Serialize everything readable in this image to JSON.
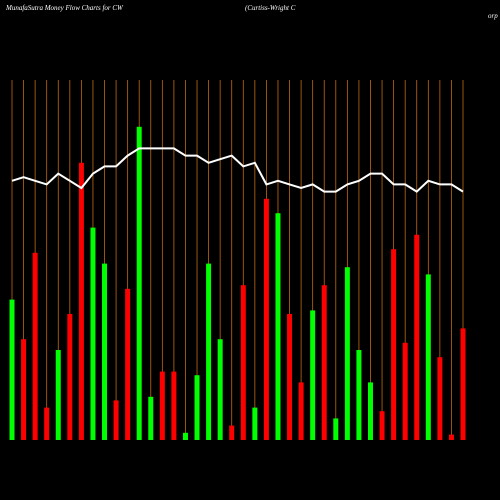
{
  "chart_data": {
    "type": "bar",
    "title": "MunafaSutra  Money Flow  Charts for CW",
    "subtitle": "(Curtiss-Wright C",
    "subtitle_cut": "orp",
    "ylim": [
      0,
      100
    ],
    "grid_color": "#c06a10",
    "line_color": "#ffffff",
    "series": [
      {
        "name": "Money flow",
        "values": [
          39,
          28,
          52,
          9,
          25,
          35,
          77,
          59,
          49,
          11,
          42,
          87,
          12,
          19,
          19,
          2,
          18,
          49,
          28,
          4,
          43,
          9,
          67,
          63,
          35,
          16,
          36,
          43,
          6,
          48,
          25,
          16,
          8,
          53,
          27,
          57,
          46,
          23,
          1.5,
          31
        ],
        "colors": [
          "#00ff00",
          "#ff0000",
          "#ff0000",
          "#ff0000",
          "#00ff00",
          "#ff0000",
          "#ff0000",
          "#00ff00",
          "#00ff00",
          "#ff0000",
          "#ff0000",
          "#00ff00",
          "#00ff00",
          "#ff0000",
          "#ff0000",
          "#00ff00",
          "#00ff00",
          "#00ff00",
          "#00ff00",
          "#ff0000",
          "#ff0000",
          "#00ff00",
          "#ff0000",
          "#00ff00",
          "#ff0000",
          "#ff0000",
          "#00ff00",
          "#ff0000",
          "#00ff00",
          "#00ff00",
          "#00ff00",
          "#00ff00",
          "#ff0000",
          "#ff0000",
          "#ff0000",
          "#ff0000",
          "#00ff00",
          "#ff0000",
          "#ff0000",
          "#ff0000"
        ]
      },
      {
        "name": "Price",
        "type": "line",
        "values": [
          72,
          73,
          72,
          71,
          74,
          72,
          70,
          74,
          76,
          76,
          79,
          81,
          81,
          81,
          81,
          79,
          79,
          77,
          78,
          79,
          76,
          77,
          71,
          72,
          71,
          70,
          71,
          69,
          69,
          71,
          72,
          74,
          74,
          71,
          71,
          69,
          72,
          71,
          71,
          69
        ]
      }
    ]
  }
}
